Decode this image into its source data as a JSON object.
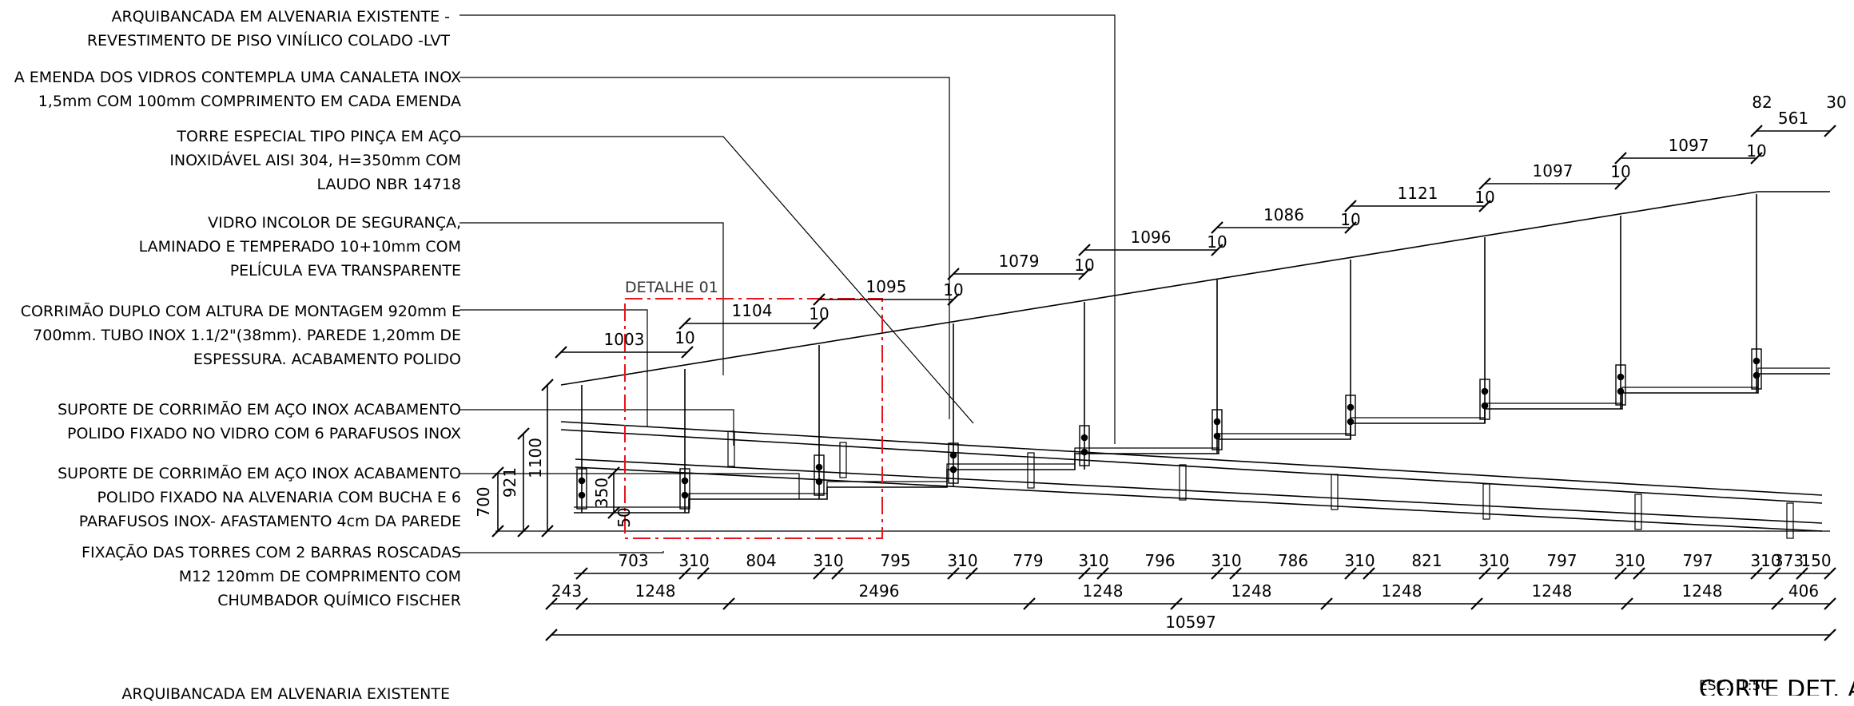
{
  "annotations": [
    {
      "lines": [
        "ARQUIBANCADA EM ALVENARIA EXISTENTE -",
        "REVESTIMENTO DE PISO VINÍLICO COLADO -LVT"
      ]
    },
    {
      "lines": [
        "A EMENDA DOS VIDROS CONTEMPLA UMA CANALETA INOX",
        "1,5mm COM 100mm COMPRIMENTO EM CADA EMENDA"
      ]
    },
    {
      "lines": [
        "TORRE ESPECIAL TIPO PINÇA EM AÇO",
        "INOXIDÁVEL AISI 304, H=350mm COM",
        "LAUDO NBR 14718"
      ]
    },
    {
      "lines": [
        "VIDRO INCOLOR DE SEGURANÇA,",
        "LAMINADO E TEMPERADO 10+10mm COM",
        "PELÍCULA EVA TRANSPARENTE"
      ]
    },
    {
      "lines": [
        "CORRIMÃO DUPLO COM ALTURA DE MONTAGEM 920mm E",
        "700mm. TUBO INOX 1.1/2\"(38mm). PAREDE 1,20mm DE",
        "ESPESSURA. ACABAMENTO POLIDO"
      ]
    },
    {
      "lines": [
        "SUPORTE DE CORRIMÃO EM AÇO INOX ACABAMENTO",
        "POLIDO FIXADO NO VIDRO COM 6 PARAFUSOS INOX"
      ]
    },
    {
      "lines": [
        "SUPORTE DE CORRIMÃO EM AÇO INOX ACABAMENTO",
        "POLIDO FIXADO NA ALVENARIA COM BUCHA E 6",
        "PARAFUSOS INOX- AFASTAMENTO 4cm DA PAREDE"
      ]
    },
    {
      "lines": [
        "FIXAÇÃO DAS TORRES COM 2 BARRAS ROSCADAS",
        "M12 120mm DE COMPRIMENTO COM",
        "CHUMBADOR QUÍMICO FISCHER"
      ]
    }
  ],
  "footer_note": "ARQUIBANCADA EM ALVENARIA EXISTENTE",
  "detail_label": "DETALHE 01",
  "title": "CORTE DET. A",
  "scale": "ESC.: 1:50",
  "glass_widths": [
    "1003",
    "1104",
    "1095",
    "1079",
    "1096",
    "1086",
    "1121",
    "1097",
    "1097",
    "561"
  ],
  "joint_labels": [
    "10",
    "10",
    "10",
    "10",
    "10",
    "10",
    "10",
    "10",
    "10",
    "82",
    "30"
  ],
  "vertical_dims": [
    "700",
    "921",
    "1100",
    "350",
    "50"
  ],
  "step_row": [
    "703",
    "310",
    "804",
    "310",
    "795",
    "310",
    "779",
    "310",
    "796",
    "310",
    "786",
    "310",
    "821",
    "310",
    "797",
    "310",
    "797",
    "310",
    "373",
    "150"
  ],
  "module_row": [
    "243",
    "1248",
    "2496",
    "1248",
    "1248",
    "1248",
    "1248",
    "1248",
    "406"
  ],
  "total": "10597",
  "colors": {
    "lines": "#000000",
    "detail_frame": "#e8141b",
    "background": "#ffffff"
  }
}
